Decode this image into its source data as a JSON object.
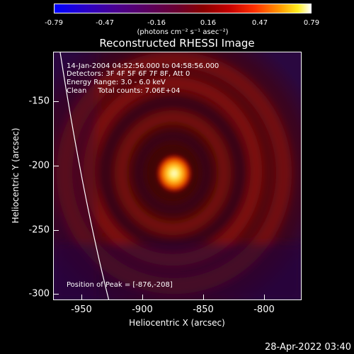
{
  "colorbar": {
    "ticks": [
      "-0.79",
      "-0.47",
      "-0.16",
      "0.16",
      "0.47",
      "0.79"
    ],
    "unit": "(photons cm⁻² s⁻¹ asec⁻²)"
  },
  "title": "Reconstructed RHESSI Image",
  "info": {
    "time": "14-Jan-2004 04:52:56.000 to 04:58:56.000",
    "detectors": "Detectors: 3F 4F 5F 6F 7F 8F, Att 0",
    "energy": "Energy Range: 3.0 - 6.0 keV",
    "clean": "Clean     Total counts: 7.06E+04",
    "peak": "Position of Peak = [-876,-208]"
  },
  "axes": {
    "x_label": "Heliocentric X (arcsec)",
    "y_label": "Heliocentric Y (arcsec)",
    "x_ticks": [
      "-950",
      "-900",
      "-850",
      "-800"
    ],
    "y_ticks": [
      "-150",
      "-200",
      "-250",
      "-300"
    ]
  },
  "chart_data": {
    "type": "heatmap",
    "title": "Reconstructed RHESSI Image",
    "xlabel": "Heliocentric X (arcsec)",
    "ylabel": "Heliocentric Y (arcsec)",
    "xlim": [
      -970,
      -790
    ],
    "ylim": [
      -305,
      -125
    ],
    "peak": [
      -876,
      -208
    ],
    "colorscale": [
      "#0000ff",
      "#5a0060",
      "#8a0000",
      "#ff3000",
      "#ffee20",
      "#ffffff"
    ]
  },
  "timestamp": "28-Apr-2022 03:40"
}
